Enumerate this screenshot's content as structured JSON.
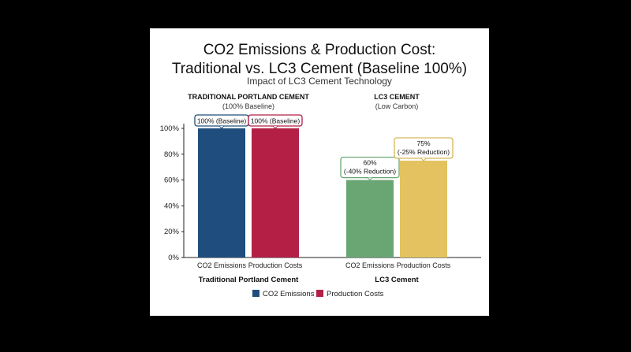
{
  "chart_data": {
    "type": "bar",
    "title_line1": "CO2 Emissions & Production Cost:",
    "title_line2": "Traditional vs. LC3 Cement (Baseline 100%)",
    "subtitle": "Impact of LC3 Cement Technology",
    "ylim": [
      0,
      100
    ],
    "y_ticks": [
      {
        "value": 0,
        "label": "0%"
      },
      {
        "value": 20,
        "label": "20%"
      },
      {
        "value": 40,
        "label": "40%"
      },
      {
        "value": 60,
        "label": "60%"
      },
      {
        "value": 80,
        "label": "80%"
      },
      {
        "value": 100,
        "label": "100%"
      }
    ],
    "grid": false,
    "legend_position": "bottom",
    "groups": [
      {
        "header": "TRADITIONAL PORTLAND CEMENT",
        "subheader": "(100% Baseline)",
        "xlabel": "Traditional Portland Cement",
        "bars": [
          {
            "series": "CO2 Emissions",
            "category": "CO2 Emissions",
            "value": 100,
            "color": "#1f4e7e",
            "label_line1": "100% (Baseline)",
            "label_line2": "",
            "label_border": "#1f4e7e"
          },
          {
            "series": "Production Costs",
            "category": "Production Costs",
            "value": 100,
            "color": "#b31f45",
            "label_line1": "100% (Baseline)",
            "label_line2": "",
            "label_border": "#b31f45"
          }
        ]
      },
      {
        "header": "LC3 CEMENT",
        "subheader": "(Low Carbon)",
        "xlabel": "LC3 Cement",
        "bars": [
          {
            "series": "CO2 Emissions",
            "category": "CO2 Emissions",
            "value": 60,
            "color": "#6aa674",
            "label_line1": "60%",
            "label_line2": "(-40% Reduction)",
            "label_border": "#6aa674"
          },
          {
            "series": "Production Costs",
            "category": "Production Costs",
            "value": 75,
            "color": "#e3c25f",
            "label_line1": "75%",
            "label_line2": "(-25% Reduction)",
            "label_border": "#d5b656"
          }
        ]
      }
    ],
    "legend": [
      {
        "name": "CO2 Emissions",
        "color": "#1f4e7e"
      },
      {
        "name": "Production Costs",
        "color": "#b31f45"
      }
    ]
  }
}
